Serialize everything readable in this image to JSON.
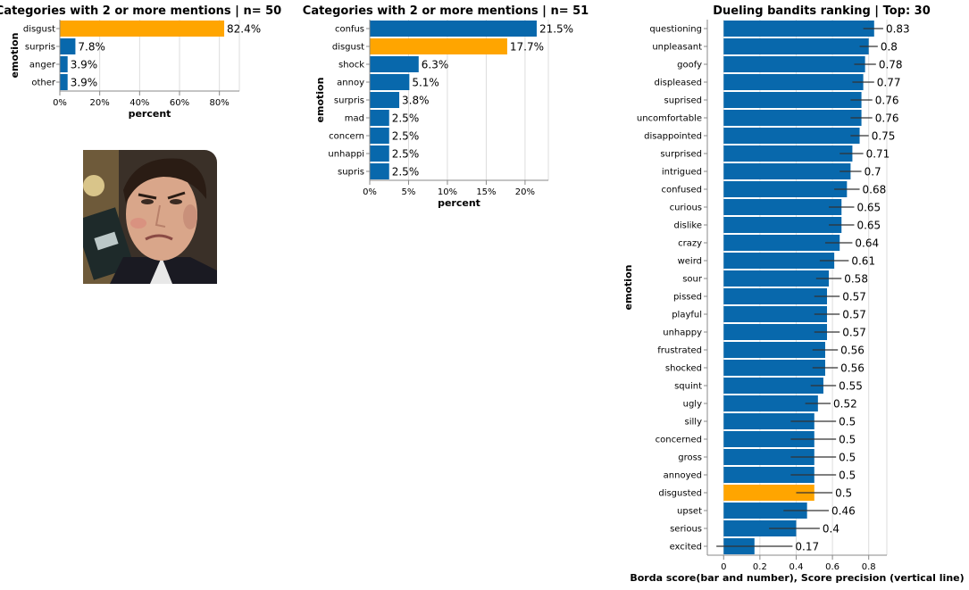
{
  "colors": {
    "bar": "#0868ac",
    "highlight": "#ffa500",
    "grid": "#dddddd",
    "axis": "#888888",
    "errorbar": "#333333"
  },
  "image": {
    "description_icon": "face-photo-icon"
  },
  "chart_data": [
    {
      "type": "bar",
      "orientation": "horizontal",
      "title": "Categories with 2 or more mentions | n= 50",
      "xlabel": "percent",
      "ylabel": "emotion",
      "xlim": [
        0,
        90
      ],
      "xticks": [
        "0%",
        "20%",
        "40%",
        "60%",
        "80%"
      ],
      "xtick_values": [
        0,
        20,
        40,
        60,
        80
      ],
      "categories": [
        "disgust",
        "surpris",
        "anger",
        "other"
      ],
      "values": [
        82.4,
        7.8,
        3.9,
        3.9
      ],
      "labels": [
        "82.4%",
        "7.8%",
        "3.9%",
        "3.9%"
      ],
      "highlight": "disgust",
      "grid": true
    },
    {
      "type": "bar",
      "orientation": "horizontal",
      "title": "Categories with 2 or more mentions | n= 51",
      "xlabel": "percent",
      "ylabel": "emotion",
      "xlim": [
        0,
        23
      ],
      "xticks": [
        "0%",
        "5%",
        "10%",
        "15%",
        "20%"
      ],
      "xtick_values": [
        0,
        5,
        10,
        15,
        20
      ],
      "categories": [
        "confus",
        "disgust",
        "shock",
        "annoy",
        "surpris",
        "mad",
        "concern",
        "unhappi",
        "supris"
      ],
      "values": [
        21.5,
        17.7,
        6.3,
        5.1,
        3.8,
        2.5,
        2.5,
        2.5,
        2.5
      ],
      "labels": [
        "21.5%",
        "17.7%",
        "6.3%",
        "5.1%",
        "3.8%",
        "2.5%",
        "2.5%",
        "2.5%",
        "2.5%"
      ],
      "highlight": "disgust",
      "grid": true
    },
    {
      "type": "bar",
      "orientation": "horizontal",
      "title": "Dueling bandits ranking | Top: 30",
      "xlabel": "Borda score(bar and number), Score precision (vertical line)",
      "ylabel": "emotion",
      "xlim": [
        -0.09,
        0.9
      ],
      "xticks": [
        "0",
        "0.2",
        "0.4",
        "0.6",
        "0.8"
      ],
      "xtick_values": [
        0,
        0.2,
        0.4,
        0.6,
        0.8
      ],
      "categories": [
        "questioning",
        "unpleasant",
        "goofy",
        "displeased",
        "suprised",
        "uncomfortable",
        "disappointed",
        "surprised",
        "intrigued",
        "confused",
        "curious",
        "dislike",
        "crazy",
        "weird",
        "sour",
        "pissed",
        "playful",
        "unhappy",
        "frustrated",
        "shocked",
        "squint",
        "ugly",
        "silly",
        "concerned",
        "gross",
        "annoyed",
        "disgusted",
        "upset",
        "serious",
        "excited"
      ],
      "values": [
        0.83,
        0.8,
        0.78,
        0.77,
        0.76,
        0.76,
        0.75,
        0.71,
        0.7,
        0.68,
        0.65,
        0.65,
        0.64,
        0.61,
        0.58,
        0.57,
        0.57,
        0.57,
        0.56,
        0.56,
        0.55,
        0.52,
        0.5,
        0.5,
        0.5,
        0.5,
        0.5,
        0.46,
        0.4,
        0.17
      ],
      "labels": [
        "0.83",
        "0.8",
        "0.78",
        "0.77",
        "0.76",
        "0.76",
        "0.75",
        "0.71",
        "0.7",
        "0.68",
        "0.65",
        "0.65",
        "0.64",
        "0.61",
        "0.58",
        "0.57",
        "0.57",
        "0.57",
        "0.56",
        "0.56",
        "0.55",
        "0.52",
        "0.5",
        "0.5",
        "0.5",
        "0.5",
        "0.5",
        "0.46",
        "0.4",
        "0.17"
      ],
      "error_low": [
        0.77,
        0.75,
        0.72,
        0.71,
        0.7,
        0.7,
        0.7,
        0.64,
        0.64,
        0.61,
        0.58,
        0.58,
        0.56,
        0.53,
        0.51,
        0.5,
        0.5,
        0.5,
        0.49,
        0.49,
        0.48,
        0.45,
        0.37,
        0.37,
        0.37,
        0.37,
        0.4,
        0.33,
        0.25,
        -0.04
      ],
      "error_high": [
        0.88,
        0.85,
        0.84,
        0.83,
        0.82,
        0.82,
        0.8,
        0.77,
        0.76,
        0.75,
        0.72,
        0.72,
        0.71,
        0.69,
        0.65,
        0.64,
        0.64,
        0.64,
        0.63,
        0.63,
        0.62,
        0.59,
        0.62,
        0.62,
        0.62,
        0.62,
        0.6,
        0.58,
        0.53,
        0.38
      ],
      "highlight": "disgusted",
      "grid": true
    }
  ]
}
